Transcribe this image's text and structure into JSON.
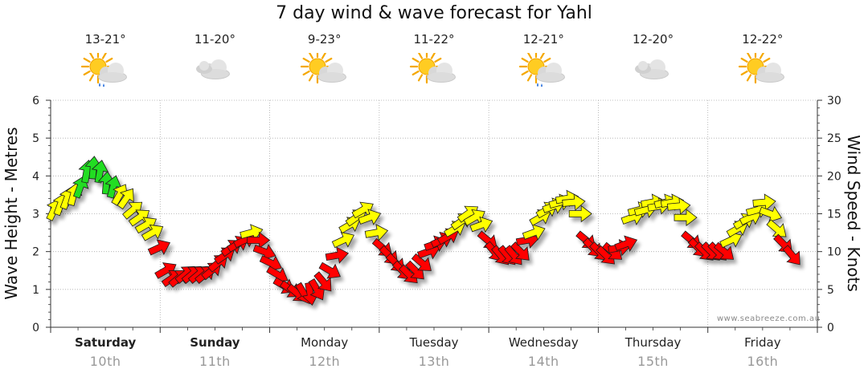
{
  "chart_data": {
    "type": "line",
    "title": "7 day wind & wave forecast for Yahl",
    "y_left_label": "Wave Height - Metres",
    "y_right_label": "Wind Speed - Knots",
    "y_left_range": [
      0,
      6
    ],
    "y_right_range": [
      0,
      30
    ],
    "y_left_ticks": [
      "0",
      "1",
      "2",
      "3",
      "4",
      "5",
      "6"
    ],
    "y_right_ticks": [
      "0",
      "5",
      "10",
      "15",
      "20",
      "25",
      "30"
    ],
    "grid": true,
    "days": [
      {
        "name": "Saturday",
        "date": "10th",
        "bold": true,
        "temp": "13-21°",
        "icon": "sun-cloud-rain-icon"
      },
      {
        "name": "Sunday",
        "date": "11th",
        "bold": true,
        "temp": "11-20°",
        "icon": "cloud-icon"
      },
      {
        "name": "Monday",
        "date": "12th",
        "bold": false,
        "temp": "9-23°",
        "icon": "sun-cloud-icon"
      },
      {
        "name": "Tuesday",
        "date": "13th",
        "bold": false,
        "temp": "11-22°",
        "icon": "sun-cloud-icon"
      },
      {
        "name": "Wednesday",
        "date": "14th",
        "bold": false,
        "temp": "12-21°",
        "icon": "sun-cloud-rain-icon"
      },
      {
        "name": "Thursday",
        "date": "15th",
        "bold": false,
        "temp": "12-20°",
        "icon": "cloud-icon"
      },
      {
        "name": "Friday",
        "date": "16th",
        "bold": false,
        "temp": "12-22°",
        "icon": "sun-cloud-icon"
      }
    ],
    "wind_colors": {
      "green": "#22dd22",
      "yellow": "#ffff00",
      "red": "#ff0000"
    },
    "wind_series": {
      "name": "",
      "unit": "knots",
      "points": [
        {
          "t": 0.0,
          "v": 15.5,
          "dir": 65,
          "c": "yellow"
        },
        {
          "t": 0.06,
          "v": 16.2,
          "dir": 70,
          "c": "yellow"
        },
        {
          "t": 0.12,
          "v": 17.0,
          "dir": 70,
          "c": "yellow"
        },
        {
          "t": 0.18,
          "v": 17.5,
          "dir": 75,
          "c": "yellow"
        },
        {
          "t": 0.24,
          "v": 18.5,
          "dir": 70,
          "c": "green"
        },
        {
          "t": 0.3,
          "v": 20.5,
          "dir": 80,
          "c": "green"
        },
        {
          "t": 0.36,
          "v": 21.0,
          "dir": 85,
          "c": "green"
        },
        {
          "t": 0.42,
          "v": 20.5,
          "dir": 80,
          "c": "green"
        },
        {
          "t": 0.48,
          "v": 19.0,
          "dir": 85,
          "c": "green"
        },
        {
          "t": 0.54,
          "v": 18.5,
          "dir": 75,
          "c": "green"
        },
        {
          "t": 0.6,
          "v": 17.5,
          "dir": 60,
          "c": "yellow"
        },
        {
          "t": 0.66,
          "v": 17.0,
          "dir": 55,
          "c": "yellow"
        },
        {
          "t": 0.72,
          "v": 15.5,
          "dir": 40,
          "c": "yellow"
        },
        {
          "t": 0.78,
          "v": 14.5,
          "dir": 35,
          "c": "yellow"
        },
        {
          "t": 0.84,
          "v": 13.5,
          "dir": 30,
          "c": "yellow"
        },
        {
          "t": 0.9,
          "v": 12.5,
          "dir": 30,
          "c": "yellow"
        },
        {
          "t": 0.96,
          "v": 10.5,
          "dir": 25,
          "c": "red"
        },
        {
          "t": 1.02,
          "v": 7.5,
          "dir": 30,
          "c": "red"
        },
        {
          "t": 1.08,
          "v": 6.5,
          "dir": 35,
          "c": "red"
        },
        {
          "t": 1.14,
          "v": 6.5,
          "dir": 40,
          "c": "red"
        },
        {
          "t": 1.2,
          "v": 7.0,
          "dir": 40,
          "c": "red"
        },
        {
          "t": 1.26,
          "v": 7.0,
          "dir": 40,
          "c": "red"
        },
        {
          "t": 1.32,
          "v": 7.0,
          "dir": 40,
          "c": "red"
        },
        {
          "t": 1.38,
          "v": 7.0,
          "dir": 40,
          "c": "red"
        },
        {
          "t": 1.44,
          "v": 7.5,
          "dir": 40,
          "c": "red"
        },
        {
          "t": 1.5,
          "v": 8.5,
          "dir": 40,
          "c": "red"
        },
        {
          "t": 1.56,
          "v": 9.5,
          "dir": 35,
          "c": "red"
        },
        {
          "t": 1.62,
          "v": 10.5,
          "dir": 35,
          "c": "red"
        },
        {
          "t": 1.68,
          "v": 11.0,
          "dir": 30,
          "c": "red"
        },
        {
          "t": 1.74,
          "v": 11.5,
          "dir": 25,
          "c": "red"
        },
        {
          "t": 1.8,
          "v": 12.5,
          "dir": 15,
          "c": "yellow"
        },
        {
          "t": 1.86,
          "v": 11.5,
          "dir": 0,
          "c": "red"
        },
        {
          "t": 1.92,
          "v": 10.0,
          "dir": -20,
          "c": "red"
        },
        {
          "t": 1.98,
          "v": 8.5,
          "dir": -25,
          "c": "red"
        },
        {
          "t": 2.04,
          "v": 7.0,
          "dir": -30,
          "c": "red"
        },
        {
          "t": 2.1,
          "v": 5.5,
          "dir": -30,
          "c": "red"
        },
        {
          "t": 2.16,
          "v": 5.0,
          "dir": -35,
          "c": "red"
        },
        {
          "t": 2.22,
          "v": 4.5,
          "dir": -40,
          "c": "red"
        },
        {
          "t": 2.28,
          "v": 4.5,
          "dir": -60,
          "c": "red"
        },
        {
          "t": 2.34,
          "v": 4.5,
          "dir": -80,
          "c": "red"
        },
        {
          "t": 2.4,
          "v": 5.0,
          "dir": -60,
          "c": "red"
        },
        {
          "t": 2.46,
          "v": 6.0,
          "dir": -50,
          "c": "red"
        },
        {
          "t": 2.52,
          "v": 7.5,
          "dir": -30,
          "c": "red"
        },
        {
          "t": 2.58,
          "v": 9.5,
          "dir": 10,
          "c": "red"
        },
        {
          "t": 2.64,
          "v": 11.5,
          "dir": 25,
          "c": "yellow"
        },
        {
          "t": 2.7,
          "v": 13.5,
          "dir": 30,
          "c": "yellow"
        },
        {
          "t": 2.76,
          "v": 14.5,
          "dir": 35,
          "c": "yellow"
        },
        {
          "t": 2.82,
          "v": 15.5,
          "dir": 30,
          "c": "yellow"
        },
        {
          "t": 2.88,
          "v": 14.5,
          "dir": 20,
          "c": "yellow"
        },
        {
          "t": 2.94,
          "v": 12.5,
          "dir": 10,
          "c": "yellow"
        },
        {
          "t": 3.0,
          "v": 10.5,
          "dir": -40,
          "c": "red"
        },
        {
          "t": 3.06,
          "v": 9.5,
          "dir": -45,
          "c": "red"
        },
        {
          "t": 3.12,
          "v": 8.5,
          "dir": -45,
          "c": "red"
        },
        {
          "t": 3.18,
          "v": 7.5,
          "dir": -45,
          "c": "red"
        },
        {
          "t": 3.24,
          "v": 7.0,
          "dir": -45,
          "c": "red"
        },
        {
          "t": 3.3,
          "v": 7.5,
          "dir": -45,
          "c": "red"
        },
        {
          "t": 3.36,
          "v": 8.5,
          "dir": -40,
          "c": "red"
        },
        {
          "t": 3.42,
          "v": 10.0,
          "dir": 20,
          "c": "red"
        },
        {
          "t": 3.48,
          "v": 11.0,
          "dir": 20,
          "c": "red"
        },
        {
          "t": 3.54,
          "v": 11.5,
          "dir": 25,
          "c": "red"
        },
        {
          "t": 3.6,
          "v": 12.0,
          "dir": 30,
          "c": "red"
        },
        {
          "t": 3.66,
          "v": 13.0,
          "dir": 30,
          "c": "yellow"
        },
        {
          "t": 3.72,
          "v": 14.0,
          "dir": 35,
          "c": "yellow"
        },
        {
          "t": 3.78,
          "v": 15.0,
          "dir": 35,
          "c": "yellow"
        },
        {
          "t": 3.84,
          "v": 14.5,
          "dir": 30,
          "c": "yellow"
        },
        {
          "t": 3.9,
          "v": 13.5,
          "dir": 20,
          "c": "yellow"
        },
        {
          "t": 3.96,
          "v": 11.5,
          "dir": -40,
          "c": "red"
        },
        {
          "t": 4.02,
          "v": 10.0,
          "dir": -50,
          "c": "red"
        },
        {
          "t": 4.08,
          "v": 9.5,
          "dir": -50,
          "c": "red"
        },
        {
          "t": 4.14,
          "v": 9.5,
          "dir": -50,
          "c": "red"
        },
        {
          "t": 4.2,
          "v": 9.5,
          "dir": -50,
          "c": "red"
        },
        {
          "t": 4.26,
          "v": 10.0,
          "dir": -45,
          "c": "red"
        },
        {
          "t": 4.32,
          "v": 11.5,
          "dir": 10,
          "c": "red"
        },
        {
          "t": 4.38,
          "v": 12.5,
          "dir": 20,
          "c": "yellow"
        },
        {
          "t": 4.44,
          "v": 14.5,
          "dir": 30,
          "c": "yellow"
        },
        {
          "t": 4.5,
          "v": 15.5,
          "dir": 30,
          "c": "yellow"
        },
        {
          "t": 4.56,
          "v": 16.0,
          "dir": 20,
          "c": "yellow"
        },
        {
          "t": 4.62,
          "v": 16.5,
          "dir": 15,
          "c": "yellow"
        },
        {
          "t": 4.68,
          "v": 17.0,
          "dir": 10,
          "c": "yellow"
        },
        {
          "t": 4.74,
          "v": 16.5,
          "dir": 5,
          "c": "yellow"
        },
        {
          "t": 4.8,
          "v": 15.0,
          "dir": 0,
          "c": "yellow"
        },
        {
          "t": 4.86,
          "v": 11.5,
          "dir": -40,
          "c": "red"
        },
        {
          "t": 4.92,
          "v": 10.5,
          "dir": -45,
          "c": "red"
        },
        {
          "t": 4.98,
          "v": 10.0,
          "dir": -45,
          "c": "red"
        },
        {
          "t": 5.04,
          "v": 9.5,
          "dir": -45,
          "c": "red"
        },
        {
          "t": 5.1,
          "v": 10.0,
          "dir": -40,
          "c": "red"
        },
        {
          "t": 5.16,
          "v": 10.5,
          "dir": 10,
          "c": "red"
        },
        {
          "t": 5.22,
          "v": 11.0,
          "dir": 20,
          "c": "red"
        },
        {
          "t": 5.28,
          "v": 14.5,
          "dir": 20,
          "c": "yellow"
        },
        {
          "t": 5.34,
          "v": 15.5,
          "dir": 15,
          "c": "yellow"
        },
        {
          "t": 5.4,
          "v": 15.5,
          "dir": 15,
          "c": "yellow"
        },
        {
          "t": 5.46,
          "v": 16.5,
          "dir": 10,
          "c": "yellow"
        },
        {
          "t": 5.52,
          "v": 16.0,
          "dir": 10,
          "c": "yellow"
        },
        {
          "t": 5.58,
          "v": 16.5,
          "dir": 15,
          "c": "yellow"
        },
        {
          "t": 5.64,
          "v": 16.5,
          "dir": 10,
          "c": "yellow"
        },
        {
          "t": 5.7,
          "v": 16.0,
          "dir": 5,
          "c": "yellow"
        },
        {
          "t": 5.76,
          "v": 14.5,
          "dir": 0,
          "c": "yellow"
        },
        {
          "t": 5.82,
          "v": 11.5,
          "dir": -40,
          "c": "red"
        },
        {
          "t": 5.88,
          "v": 10.5,
          "dir": -45,
          "c": "red"
        },
        {
          "t": 5.94,
          "v": 10.0,
          "dir": -45,
          "c": "red"
        },
        {
          "t": 6.0,
          "v": 10.0,
          "dir": -45,
          "c": "red"
        },
        {
          "t": 6.06,
          "v": 10.0,
          "dir": -45,
          "c": "red"
        },
        {
          "t": 6.12,
          "v": 10.0,
          "dir": -40,
          "c": "red"
        },
        {
          "t": 6.18,
          "v": 11.5,
          "dir": 25,
          "c": "yellow"
        },
        {
          "t": 6.24,
          "v": 13.0,
          "dir": 30,
          "c": "yellow"
        },
        {
          "t": 6.3,
          "v": 14.0,
          "dir": 30,
          "c": "yellow"
        },
        {
          "t": 6.36,
          "v": 14.5,
          "dir": 25,
          "c": "yellow"
        },
        {
          "t": 6.42,
          "v": 15.5,
          "dir": 15,
          "c": "yellow"
        },
        {
          "t": 6.48,
          "v": 16.5,
          "dir": 5,
          "c": "yellow"
        },
        {
          "t": 6.54,
          "v": 15.0,
          "dir": -20,
          "c": "yellow"
        },
        {
          "t": 6.6,
          "v": 13.0,
          "dir": -40,
          "c": "yellow"
        },
        {
          "t": 6.66,
          "v": 11.0,
          "dir": -45,
          "c": "red"
        },
        {
          "t": 6.74,
          "v": 9.5,
          "dir": -50,
          "c": "red"
        }
      ]
    }
  },
  "watermark": "www.seabreeze.com.au"
}
